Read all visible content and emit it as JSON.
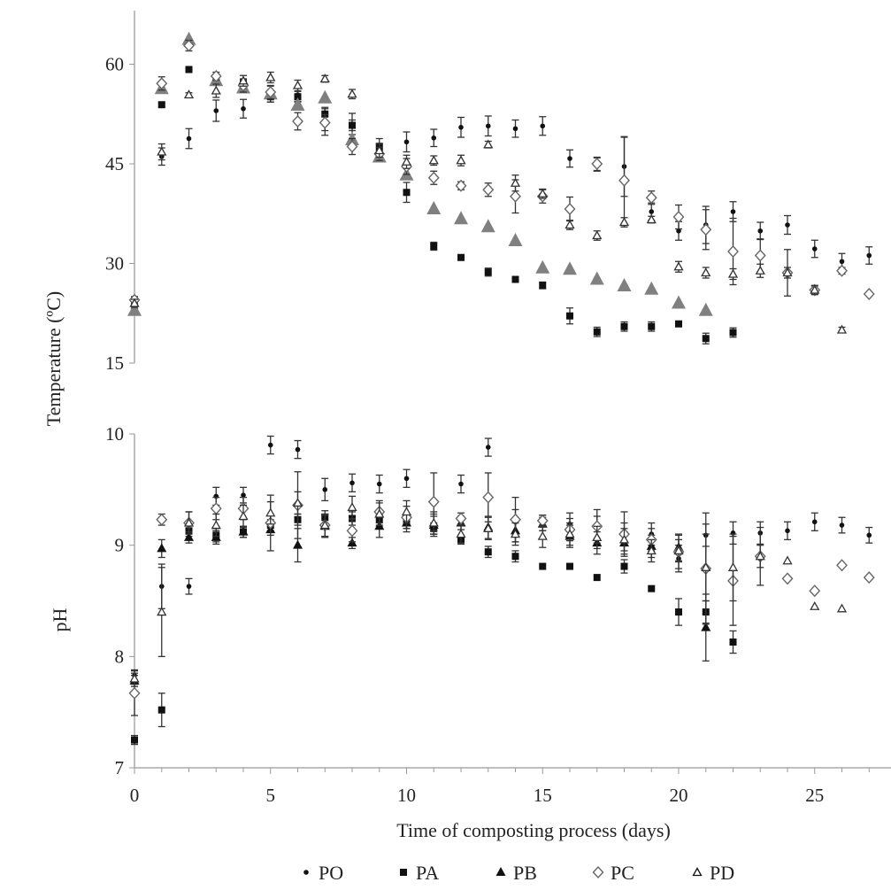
{
  "chart_data": [
    {
      "type": "scatter",
      "ylabel": "Temperature (ºC)",
      "xlabel": "",
      "ylim": [
        15,
        67
      ],
      "yticks": [
        "15",
        "30",
        "45",
        "60"
      ],
      "xlim": [
        0,
        27.8
      ],
      "error_bars": true,
      "series": [
        {
          "name": "PO",
          "color": "#111111",
          "marker": "small-dot",
          "x": [
            0,
            1,
            2,
            3,
            4,
            5,
            6,
            7,
            8,
            9,
            10,
            11,
            12,
            13,
            14,
            15,
            16,
            17,
            18,
            19,
            20,
            21,
            22,
            23,
            24,
            25,
            26,
            27
          ],
          "y": [
            24,
            46.1,
            48.8,
            53.0,
            53.3,
            55.5,
            55.4,
            51.3,
            51.0,
            47.3,
            48.3,
            48.9,
            50.5,
            50.7,
            50.3,
            50.7,
            45.8,
            44.9,
            44.6,
            37.8,
            34.9,
            35.8,
            37.8,
            34.9,
            35.8,
            32.2,
            30.3,
            31.2
          ],
          "err": [
            1,
            1.3,
            1.5,
            1.6,
            1.4,
            1.2,
            1.0,
            2.0,
            1.6,
            1.5,
            1.5,
            1.3,
            1.5,
            1.5,
            1.3,
            1.4,
            1.3,
            1.0,
            4.5,
            1.3,
            1.4,
            2.8,
            1.5,
            1.3,
            1.4,
            1.3,
            1.2,
            1.3
          ]
        },
        {
          "name": "PA",
          "color": "#111111",
          "marker": "square",
          "x": [
            0,
            1,
            2,
            3,
            4,
            5,
            6,
            7,
            8,
            9,
            10,
            11,
            12,
            13,
            14,
            15,
            16,
            17,
            18,
            19,
            20,
            21,
            22
          ],
          "y": [
            24,
            53.9,
            59.2,
            58.0,
            57.1,
            55.1,
            55.1,
            52.5,
            50.8,
            47.5,
            40.7,
            32.6,
            30.9,
            28.7,
            27.6,
            26.7,
            22.1,
            19.7,
            20.5,
            20.5,
            20.9,
            18.7,
            19.6
          ],
          "err": [
            0.8,
            0.3,
            0.3,
            0.5,
            0.6,
            0.8,
            0.8,
            1.0,
            0.8,
            0.6,
            1.5,
            0.6,
            0.3,
            0.6,
            0.3,
            0.5,
            1.2,
            0.7,
            0.7,
            0.7,
            0.3,
            0.8,
            0.7
          ]
        },
        {
          "name": "PB",
          "color": "#808080",
          "marker": "large-triangle",
          "x": [
            0,
            1,
            2,
            3,
            4,
            5,
            6,
            7,
            8,
            9,
            10,
            11,
            12,
            13,
            14,
            15,
            16,
            17,
            18,
            19,
            20,
            21
          ],
          "y": [
            22.9,
            56.3,
            63.7,
            57.5,
            56.4,
            55.5,
            53.8,
            54.9,
            48.6,
            46.0,
            43.3,
            38.2,
            36.7,
            35.5,
            33.4,
            29.3,
            29.1,
            27.6,
            26.6,
            26.1,
            24.0,
            22.9
          ],
          "err": []
        },
        {
          "name": "PC",
          "color": "#666666",
          "marker": "open-diamond",
          "x": [
            0,
            1,
            2,
            3,
            4,
            5,
            6,
            7,
            8,
            9,
            10,
            11,
            12,
            13,
            14,
            15,
            16,
            17,
            18,
            19,
            20,
            21,
            22,
            23,
            24,
            25,
            26,
            27
          ],
          "y": [
            24.5,
            57.1,
            62.8,
            58.2,
            56.8,
            55.8,
            51.4,
            51.2,
            47.6,
            46.5,
            44.6,
            42.9,
            41.7,
            41.1,
            40.1,
            40.1,
            38.2,
            45.0,
            42.5,
            39.9,
            37.0,
            35.1,
            31.8,
            31.2,
            28.6,
            26.0,
            28.9,
            25.4
          ],
          "err": [
            0.5,
            1.0,
            0.8,
            0.6,
            1.0,
            1.0,
            1.3,
            1.2,
            1.2,
            1.0,
            1.2,
            1.0,
            0.6,
            1.0,
            2.5,
            1.0,
            1.8,
            1.0,
            6.5,
            1.0,
            1.8,
            3.0,
            5.0,
            2.5,
            3.5,
            0.6,
            0.5,
            0
          ]
        },
        {
          "name": "PD",
          "color": "#333333",
          "marker": "open-triangle",
          "x": [
            0,
            1,
            2,
            3,
            4,
            5,
            6,
            7,
            8,
            9,
            10,
            11,
            12,
            13,
            14,
            15,
            16,
            17,
            18,
            19,
            20,
            21,
            22,
            23,
            24,
            25,
            26
          ],
          "y": [
            24,
            46.8,
            55.4,
            56.0,
            57.5,
            58.0,
            56.8,
            57.8,
            55.5,
            47.0,
            45.3,
            45.5,
            45.5,
            47.9,
            42.1,
            40.5,
            35.8,
            34.2,
            36.2,
            36.6,
            29.5,
            28.6,
            28.4,
            28.9,
            28.6,
            26.0,
            20.0
          ],
          "err": [
            0.6,
            1.2,
            0.3,
            1.0,
            0.8,
            0.8,
            0.8,
            0.5,
            0.7,
            1.0,
            1.0,
            0.7,
            0.8,
            0.5,
            1.2,
            0.7,
            0.7,
            0.7,
            0.7,
            0.5,
            0.8,
            0.8,
            0.8,
            1.0,
            0.8,
            0.7,
            0.4
          ]
        }
      ]
    },
    {
      "type": "scatter",
      "ylabel": "pH",
      "xlabel": "Time of composting process (days)",
      "ylim": [
        7,
        10
      ],
      "yticks": [
        "7",
        "8",
        "9",
        "10"
      ],
      "xlim": [
        0,
        27.8
      ],
      "xticks": [
        "0",
        "5",
        "10",
        "15",
        "20",
        "25"
      ],
      "error_bars": true,
      "series": [
        {
          "name": "PO",
          "color": "#111111",
          "marker": "small-dot",
          "x": [
            0,
            1,
            2,
            3,
            4,
            5,
            6,
            7,
            8,
            9,
            10,
            11,
            12,
            13,
            14,
            15,
            16,
            17,
            18,
            19,
            20,
            21,
            22,
            23,
            24,
            25,
            26,
            27
          ],
          "y": [
            7.83,
            8.63,
            8.63,
            9.44,
            9.45,
            9.9,
            9.86,
            9.5,
            9.56,
            9.55,
            9.6,
            9.18,
            9.55,
            9.88,
            9.22,
            9.2,
            9.19,
            9.16,
            9.1,
            9.1,
            8.88,
            9.09,
            9.11,
            9.11,
            9.13,
            9.21,
            9.18,
            9.09
          ],
          "err": [
            0.05,
            0.2,
            0.07,
            0.08,
            0.07,
            0.08,
            0.08,
            0.1,
            0.08,
            0.08,
            0.08,
            0.1,
            0.08,
            0.08,
            0.1,
            0.07,
            0.1,
            0.1,
            0.1,
            0.1,
            0.12,
            0.1,
            0.1,
            0.1,
            0.08,
            0.08,
            0.07,
            0.07
          ]
        },
        {
          "name": "PA",
          "color": "#111111",
          "marker": "square",
          "x": [
            0,
            1,
            2,
            3,
            4,
            5,
            6,
            7,
            8,
            9,
            10,
            11,
            12,
            13,
            14,
            15,
            16,
            17,
            18,
            19,
            20,
            21,
            22
          ],
          "y": [
            7.25,
            7.52,
            9.13,
            9.09,
            9.12,
            9.18,
            9.23,
            9.25,
            9.24,
            9.23,
            9.21,
            9.15,
            9.05,
            8.94,
            8.9,
            8.81,
            8.81,
            8.71,
            8.81,
            8.61,
            8.4,
            8.4,
            8.13
          ],
          "err": [
            0.04,
            0.15,
            0.05,
            0.06,
            0.05,
            0.05,
            0.05,
            0.06,
            0.06,
            0.06,
            0.06,
            0.05,
            0.04,
            0.05,
            0.05,
            0,
            0,
            0,
            0.06,
            0,
            0.12,
            0.1,
            0.1
          ]
        },
        {
          "name": "PB",
          "color": "#111111",
          "marker": "triangle",
          "x": [
            0,
            1,
            2,
            3,
            4,
            5,
            6,
            7,
            8,
            9,
            10,
            11,
            12,
            13,
            14,
            15,
            16,
            17,
            18,
            19,
            20,
            21
          ],
          "y": [
            7.78,
            8.97,
            9.07,
            9.07,
            9.12,
            9.14,
            9.0,
            9.17,
            9.02,
            9.17,
            9.2,
            9.18,
            9.2,
            9.16,
            9.13,
            9.19,
            9.08,
            9.02,
            9.02,
            8.99,
            8.98,
            8.26
          ],
          "err": [
            0.05,
            0.08,
            0.05,
            0.06,
            0.05,
            0.05,
            0.15,
            0.1,
            0.05,
            0.1,
            0.08,
            0.08,
            0.06,
            0.1,
            0.1,
            0.06,
            0.1,
            0.1,
            0.1,
            0.1,
            0.12,
            0.3
          ]
        },
        {
          "name": "PC",
          "color": "#666666",
          "marker": "open-diamond",
          "x": [
            0,
            1,
            2,
            3,
            4,
            5,
            6,
            7,
            8,
            9,
            10,
            11,
            12,
            13,
            14,
            15,
            16,
            17,
            18,
            19,
            20,
            21,
            22,
            23,
            24,
            25,
            26,
            27
          ],
          "y": [
            7.67,
            9.23,
            9.2,
            9.33,
            9.33,
            9.2,
            9.36,
            9.18,
            9.13,
            9.3,
            9.25,
            9.39,
            9.24,
            9.43,
            9.23,
            9.22,
            9.14,
            9.17,
            9.1,
            9.05,
            8.94,
            8.79,
            8.68,
            8.9,
            8.7,
            8.59,
            8.82,
            8.71
          ],
          "err": [
            0.2,
            0.05,
            0.1,
            0.1,
            0.1,
            0.25,
            0.3,
            0.1,
            0.1,
            0.1,
            0.1,
            0.26,
            0.05,
            0.22,
            0.2,
            0.05,
            0.1,
            0.15,
            0.2,
            0.1,
            0.15,
            0.5,
            0.4,
            0.26,
            0,
            0,
            0,
            0
          ]
        },
        {
          "name": "PD",
          "color": "#333333",
          "marker": "open-triangle",
          "x": [
            0,
            1,
            2,
            3,
            4,
            5,
            6,
            7,
            8,
            9,
            10,
            11,
            12,
            13,
            14,
            15,
            16,
            17,
            18,
            19,
            20,
            21,
            22,
            23,
            24,
            25,
            26
          ],
          "y": [
            7.8,
            8.4,
            9.2,
            9.18,
            9.26,
            9.29,
            9.38,
            9.18,
            9.34,
            9.28,
            9.3,
            9.2,
            9.1,
            9.15,
            9.1,
            9.08,
            9.1,
            9.07,
            9.05,
            8.95,
            8.95,
            8.8,
            8.8,
            8.9,
            8.86,
            8.45,
            8.43
          ],
          "err": [
            0.05,
            0.4,
            0.1,
            0.1,
            0.1,
            0.1,
            0.1,
            0.1,
            0.1,
            0.1,
            0.1,
            0.1,
            0.08,
            0.1,
            0.1,
            0.1,
            0.1,
            0.1,
            0.1,
            0.1,
            0.1,
            0.3,
            0.3,
            0.1,
            0,
            0,
            0
          ]
        }
      ]
    }
  ],
  "legend": {
    "placement": "bottom",
    "items": [
      {
        "label": "PO",
        "marker": "small-dot"
      },
      {
        "label": "PA",
        "marker": "square"
      },
      {
        "label": "PB",
        "marker": "triangle"
      },
      {
        "label": "PC",
        "marker": "open-diamond"
      },
      {
        "label": "PD",
        "marker": "open-triangle"
      }
    ]
  }
}
